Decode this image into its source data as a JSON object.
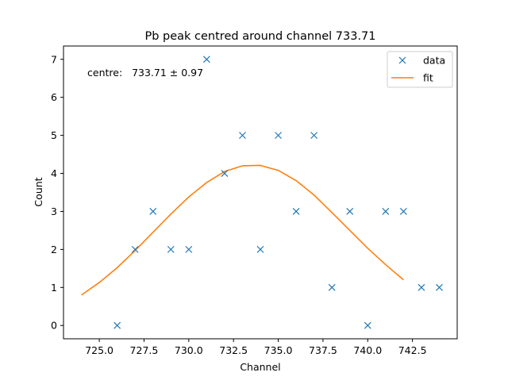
{
  "chart_data": {
    "type": "scatter",
    "title": "Pb peak centred around channel 733.71",
    "xlabel": "Channel",
    "ylabel": "Count",
    "xlim": [
      723.0,
      745.0
    ],
    "ylim": [
      -0.35,
      7.35
    ],
    "xticks": [
      725.0,
      727.5,
      730.0,
      732.5,
      735.0,
      737.5,
      740.0,
      742.5
    ],
    "xtick_labels": [
      "725.0",
      "727.5",
      "730.0",
      "732.5",
      "735.0",
      "737.5",
      "740.0",
      "742.5"
    ],
    "yticks": [
      0,
      1,
      2,
      3,
      4,
      5,
      6,
      7
    ],
    "ytick_labels": [
      "0",
      "1",
      "2",
      "3",
      "4",
      "5",
      "6",
      "7"
    ],
    "annotation": "centre:   733.71 ± 0.97",
    "grid": false,
    "legend_position": "top-right",
    "series": [
      {
        "name": "data",
        "marker": "x",
        "color": "#1f77b4",
        "x": [
          726,
          727,
          728,
          729,
          730,
          731,
          732,
          733,
          734,
          735,
          736,
          737,
          738,
          739,
          740,
          741,
          742,
          743,
          744
        ],
        "y": [
          0,
          2,
          3,
          2,
          2,
          7,
          4,
          5,
          2,
          5,
          3,
          5,
          1,
          3,
          0,
          3,
          3,
          1,
          1
        ]
      },
      {
        "name": "fit",
        "line": true,
        "color": "#ff7f0e",
        "x": [
          724,
          725,
          726,
          727,
          728,
          729,
          730,
          731,
          732,
          733,
          734,
          735,
          736,
          737,
          738,
          739,
          740,
          741,
          742
        ],
        "y": [
          0.8,
          1.13,
          1.52,
          1.97,
          2.45,
          2.93,
          3.38,
          3.76,
          4.05,
          4.2,
          4.21,
          4.08,
          3.81,
          3.43,
          2.97,
          2.5,
          2.03,
          1.6,
          1.2
        ]
      }
    ]
  }
}
